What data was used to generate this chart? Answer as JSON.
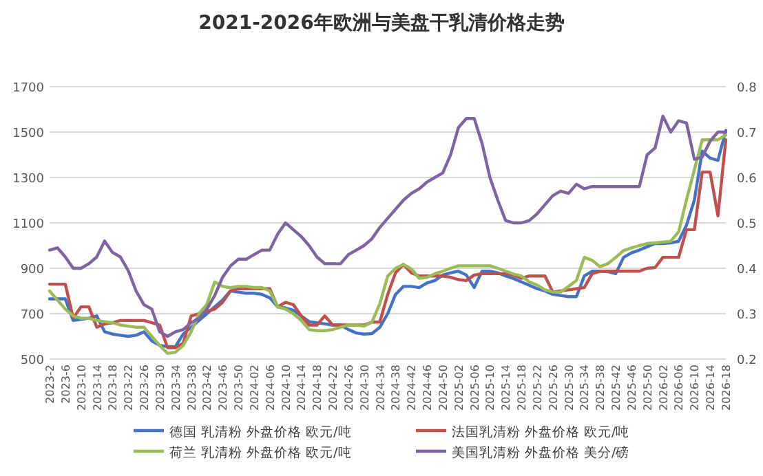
{
  "chart_data": {
    "type": "line",
    "title": "2021-2026年欧洲与美盘干乳清价格走势",
    "categories": [
      "2023-2",
      null,
      "2023-6",
      null,
      "2023-10",
      null,
      "2023-14",
      null,
      "2023-18",
      null,
      "2023-22",
      null,
      "2023-26",
      null,
      "2023-30",
      null,
      "2023-34",
      null,
      "2023-38",
      null,
      "2023-42",
      null,
      "2023-46",
      null,
      "2023-50",
      null,
      "2024-02",
      null,
      "2024-06",
      null,
      "2024-10",
      null,
      "2024-14",
      null,
      "2024-18",
      null,
      "2024-22",
      null,
      "2024-26",
      null,
      "2024-30",
      null,
      "2024-34",
      null,
      "2024-38",
      null,
      "2024-42",
      null,
      "2024-46",
      null,
      "2024-50",
      null,
      "2025-02",
      null,
      "2025-06",
      null,
      "2025-10",
      null,
      "2025-14",
      null,
      "2025-18",
      null,
      "2025-22",
      null,
      "2025-26",
      null,
      "2025-30",
      null,
      "2025-34",
      null,
      "2025-38",
      null,
      "2025-42",
      null,
      "2025-46",
      null,
      "2025-50",
      null,
      "2026-02",
      null,
      "2026-06",
      null,
      "2026-10",
      null,
      "2026-14",
      null,
      "2026-18"
    ],
    "ylim": [
      500,
      1700
    ],
    "yticks": [
      500,
      700,
      900,
      1100,
      1300,
      1500,
      1700
    ],
    "y2lim": [
      0.2,
      0.8
    ],
    "y2ticks": [
      0.2,
      0.3,
      0.4,
      0.5,
      0.6,
      0.7,
      0.8
    ],
    "grid": "y",
    "legend": "bottom",
    "marker": "none",
    "line_style": "solid",
    "series": [
      {
        "name": "德国 乳清粉 外盘价格 欧元/吨",
        "color": "#4472c4",
        "values": [
          765,
          765,
          765,
          670,
          675,
          680,
          690,
          620,
          610,
          605,
          600,
          605,
          620,
          580,
          560,
          555,
          555,
          610,
          640,
          670,
          700,
          730,
          760,
          800,
          795,
          790,
          790,
          785,
          770,
          730,
          725,
          715,
          690,
          665,
          660,
          655,
          650,
          650,
          630,
          615,
          610,
          612,
          640,
          700,
          785,
          820,
          820,
          815,
          835,
          846,
          870,
          880,
          887,
          870,
          815,
          887,
          887,
          880,
          866,
          855,
          840,
          825,
          810,
          800,
          785,
          780,
          775,
          775,
          866,
          887,
          887,
          885,
          876,
          948,
          968,
          980,
          995,
          1009,
          1009,
          1012,
          1019,
          1090,
          1200,
          1416,
          1385,
          1375,
          1507
        ]
      },
      {
        "name": "法国乳清粉 外盘价格 欧元/吨",
        "color": "#c0504d",
        "values": [
          830,
          830,
          830,
          680,
          730,
          730,
          640,
          655,
          660,
          670,
          670,
          670,
          670,
          660,
          650,
          550,
          550,
          570,
          690,
          700,
          710,
          720,
          750,
          800,
          810,
          810,
          810,
          810,
          810,
          730,
          750,
          740,
          690,
          650,
          650,
          690,
          650,
          650,
          650,
          650,
          650,
          663,
          663,
          785,
          880,
          917,
          880,
          866,
          866,
          866,
          866,
          860,
          850,
          846,
          870,
          876,
          876,
          876,
          876,
          870,
          856,
          866,
          866,
          866,
          795,
          800,
          805,
          810,
          815,
          876,
          887,
          887,
          887,
          887,
          887,
          887,
          900,
          903,
          948,
          948,
          948,
          1070,
          1070,
          1324,
          1324,
          1131,
          1466
        ]
      },
      {
        "name": "荷兰 乳清粉 外盘价格 欧元/吨",
        "color": "#9bbb59",
        "values": [
          800,
          760,
          720,
          690,
          680,
          680,
          670,
          665,
          660,
          650,
          645,
          640,
          640,
          600,
          560,
          525,
          530,
          560,
          620,
          700,
          740,
          840,
          820,
          815,
          820,
          820,
          815,
          815,
          800,
          730,
          720,
          700,
          670,
          630,
          625,
          625,
          630,
          640,
          650,
          650,
          645,
          663,
          744,
          866,
          900,
          917,
          897,
          856,
          860,
          876,
          887,
          900,
          911,
          911,
          911,
          911,
          911,
          900,
          887,
          875,
          866,
          840,
          826,
          805,
          795,
          795,
          820,
          846,
          948,
          935,
          907,
          920,
          948,
          978,
          990,
          1000,
          1009,
          1012,
          1015,
          1019,
          1060,
          1202,
          1334,
          1466,
          1466,
          1466,
          1487
        ]
      },
      {
        "name": "美国乳清粉 外盘价格 美分/磅",
        "color": "#8064a2",
        "axis": "y2",
        "values": [
          0.44,
          0.445,
          0.425,
          0.4,
          0.4,
          0.41,
          0.425,
          0.46,
          0.435,
          0.425,
          0.395,
          0.35,
          0.32,
          0.31,
          0.26,
          0.25,
          0.26,
          0.265,
          0.28,
          0.29,
          0.31,
          0.34,
          0.38,
          0.405,
          0.42,
          0.42,
          0.43,
          0.44,
          0.44,
          0.475,
          0.5,
          0.485,
          0.47,
          0.45,
          0.425,
          0.41,
          0.41,
          0.41,
          0.43,
          0.44,
          0.45,
          0.465,
          0.49,
          0.51,
          0.53,
          0.55,
          0.565,
          0.575,
          0.59,
          0.6,
          0.61,
          0.65,
          0.71,
          0.73,
          0.73,
          0.675,
          0.6,
          0.55,
          0.505,
          0.5,
          0.5,
          0.505,
          0.52,
          0.54,
          0.56,
          0.57,
          0.565,
          0.585,
          0.575,
          0.58,
          0.58,
          0.58,
          0.58,
          0.58,
          0.58,
          0.58,
          0.65,
          0.665,
          0.735,
          0.7,
          0.725,
          0.72,
          0.64,
          0.645,
          0.68,
          0.7,
          0.7
        ]
      }
    ]
  }
}
